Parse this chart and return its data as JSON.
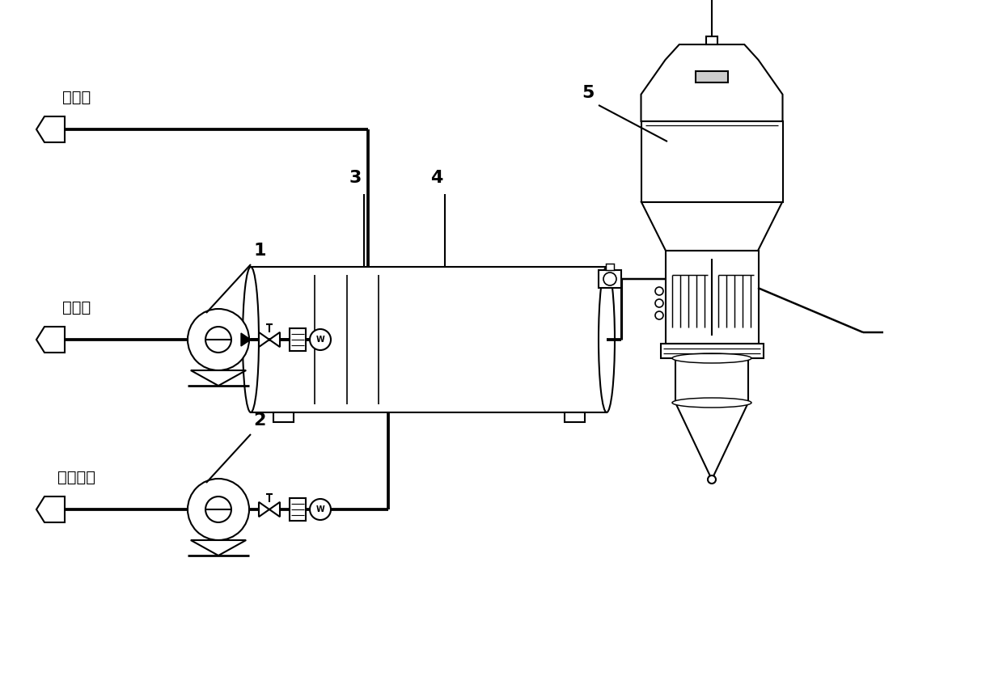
{
  "bg_color": "#ffffff",
  "line_color": "#000000",
  "lw": 1.5,
  "labels": {
    "combustible_gas": "可燃气",
    "combustion_air": "助燃风",
    "process_air": "工艺空气",
    "num1": "1",
    "num2": "2",
    "num3": "3",
    "num4": "4",
    "num5": "5"
  },
  "figsize": [
    12.4,
    8.36
  ],
  "dpi": 100
}
